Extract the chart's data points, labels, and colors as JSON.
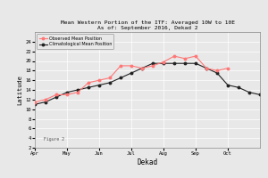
{
  "title1": "Mean Western Portion of the ITF: Averaged 10W to 10E",
  "title2": "As of: September 2016, Dekad 2",
  "xlabel": "Dekad",
  "ylabel": "Latitude",
  "figure_label": "Figure 2",
  "xlim": [
    0,
    21
  ],
  "ylim": [
    2,
    26
  ],
  "yticks": [
    2,
    4,
    6,
    8,
    10,
    12,
    14,
    16,
    18,
    20,
    22,
    24
  ],
  "xtick_labels": [
    "Apr",
    "May",
    "Jun",
    "Jul",
    "Aug",
    "Sep",
    "Oct"
  ],
  "xtick_positions": [
    0,
    3,
    6,
    9,
    12,
    15,
    18
  ],
  "observed_x": [
    0,
    1,
    2,
    3,
    4,
    5,
    6,
    7,
    8,
    9,
    10,
    11,
    12,
    13,
    14,
    15,
    16,
    17,
    18
  ],
  "observed_y": [
    11.5,
    12.0,
    13.0,
    13.0,
    13.5,
    15.5,
    16.0,
    16.5,
    19.0,
    19.0,
    18.5,
    19.0,
    19.8,
    21.0,
    20.5,
    21.0,
    18.5,
    18.0,
    18.5
  ],
  "clim_x": [
    0,
    1,
    2,
    3,
    4,
    5,
    6,
    7,
    8,
    9,
    10,
    11,
    12,
    13,
    14,
    15,
    16,
    17,
    18,
    19,
    20,
    21
  ],
  "clim_y": [
    11.0,
    11.5,
    12.5,
    13.5,
    14.0,
    14.5,
    15.0,
    15.5,
    16.5,
    17.5,
    18.5,
    19.5,
    19.5,
    19.5,
    19.5,
    19.5,
    18.5,
    17.5,
    15.0,
    14.5,
    13.5,
    13.0
  ],
  "observed_color": "#FF7777",
  "clim_color": "#222222",
  "background_color": "#e8e8e8",
  "plot_bg_color": "#e8e8e8",
  "grid_color": "#ffffff",
  "legend_observed": "Observed Mean Position",
  "legend_clim": "Climatological Mean Position"
}
